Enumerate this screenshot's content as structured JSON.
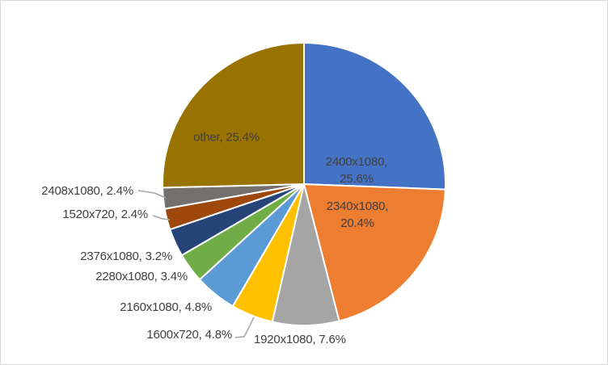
{
  "window": {
    "background": "#FFFFFF",
    "border_color": "#D9D9D9"
  },
  "chart_data": {
    "type": "pie",
    "title": "",
    "legend": "none",
    "start_angle_deg": 0,
    "direction": "clockwise",
    "label_color": "#404040",
    "leader_line_color": "#A6A6A6",
    "slice_border_color": "#FFFFFF",
    "categories": [
      "2400x1080",
      "2340x1080",
      "1920x1080",
      "1600x720",
      "2160x1080",
      "2280x1080",
      "2376x1080",
      "1520x720",
      "2408x1080",
      "other"
    ],
    "values": [
      25.6,
      20.4,
      7.6,
      4.8,
      4.8,
      3.4,
      3.2,
      2.4,
      2.4,
      25.4
    ],
    "slices": [
      {
        "label": "2400x1080",
        "value": 25.6,
        "color": "#4472C4",
        "label_placement": "inside",
        "display": "2400x1080, 25.6%",
        "label_lines": [
          "2400x1080,",
          "25.6%"
        ]
      },
      {
        "label": "2340x1080",
        "value": 20.4,
        "color": "#ED7D31",
        "label_placement": "inside",
        "display": "2340x1080, 20.4%",
        "label_lines": [
          "2340x1080,",
          "20.4%"
        ]
      },
      {
        "label": "1920x1080",
        "value": 7.6,
        "color": "#A5A5A5",
        "label_placement": "outside",
        "display": "1920x1080, 7.6%"
      },
      {
        "label": "1600x720",
        "value": 4.8,
        "color": "#FFC000",
        "label_placement": "outside-leader",
        "display": "1600x720, 4.8%"
      },
      {
        "label": "2160x1080",
        "value": 4.8,
        "color": "#5B9BD5",
        "label_placement": "outside",
        "display": "2160x1080, 4.8%"
      },
      {
        "label": "2280x1080",
        "value": 3.4,
        "color": "#70AD47",
        "label_placement": "outside",
        "display": "2280x1080, 3.4%"
      },
      {
        "label": "2376x1080",
        "value": 3.2,
        "color": "#264478",
        "label_placement": "outside",
        "display": "2376x1080, 3.2%"
      },
      {
        "label": "1520x720",
        "value": 2.4,
        "color": "#9E480E",
        "label_placement": "outside-leader",
        "display": "1520x720, 2.4%"
      },
      {
        "label": "2408x1080",
        "value": 2.4,
        "color": "#757070",
        "label_placement": "outside-leader",
        "display": "2408x1080, 2.4%"
      },
      {
        "label": "other",
        "value": 25.4,
        "color": "#997300",
        "label_placement": "inside",
        "display": "other, 25.4%"
      }
    ]
  }
}
